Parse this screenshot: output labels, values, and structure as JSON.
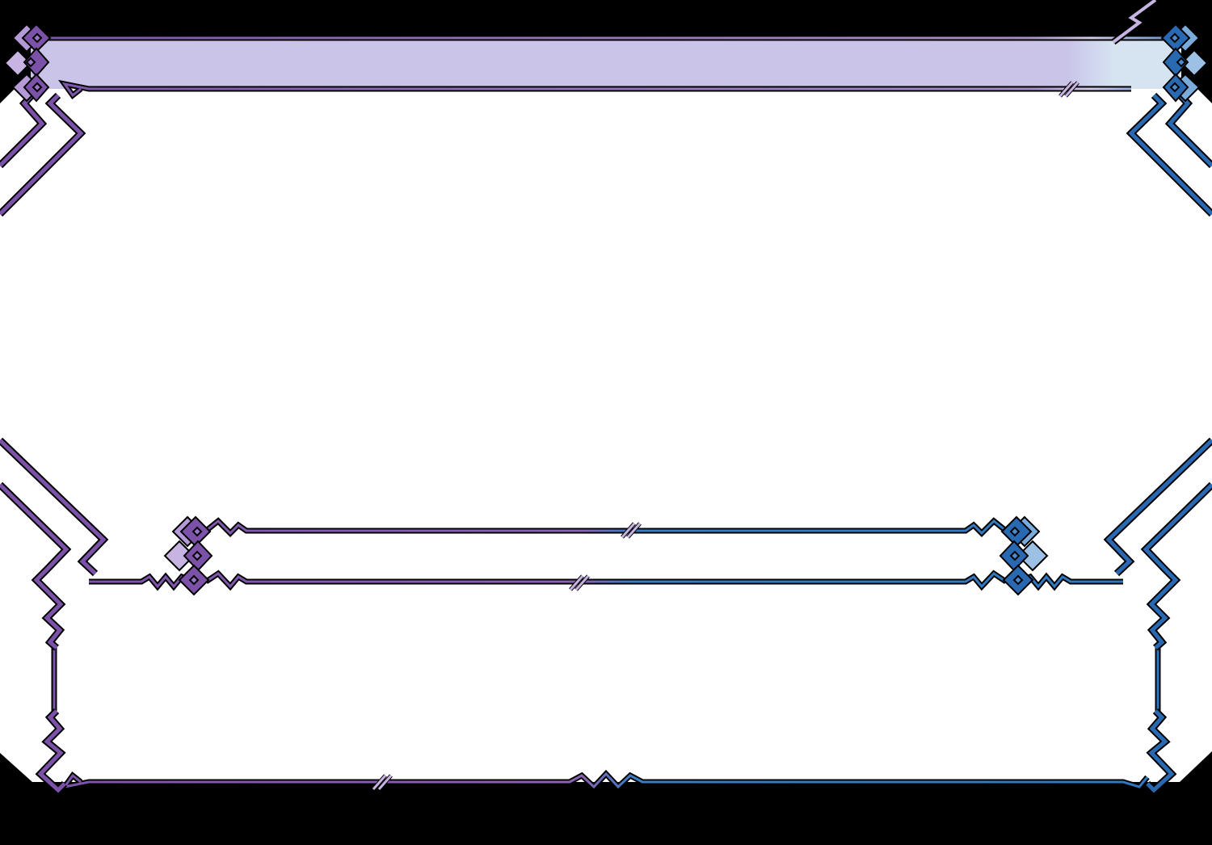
{
  "theme": {
    "background": "#000000",
    "panel": "#ffffff",
    "title_bar_fill": "#c9c4e8",
    "title_bar_fill_end": "#d6e4f2",
    "accent_left": "#7b52a8",
    "accent_left_light": "#b49ad6",
    "accent_right": "#2e78c0",
    "accent_right_light": "#9cc0e6",
    "outline": "#000000"
  },
  "frame": {
    "title_bar": {
      "text": ""
    },
    "main_area": {
      "text": ""
    },
    "name_box": {
      "text": ""
    },
    "dialogue_box": {
      "text": ""
    }
  }
}
